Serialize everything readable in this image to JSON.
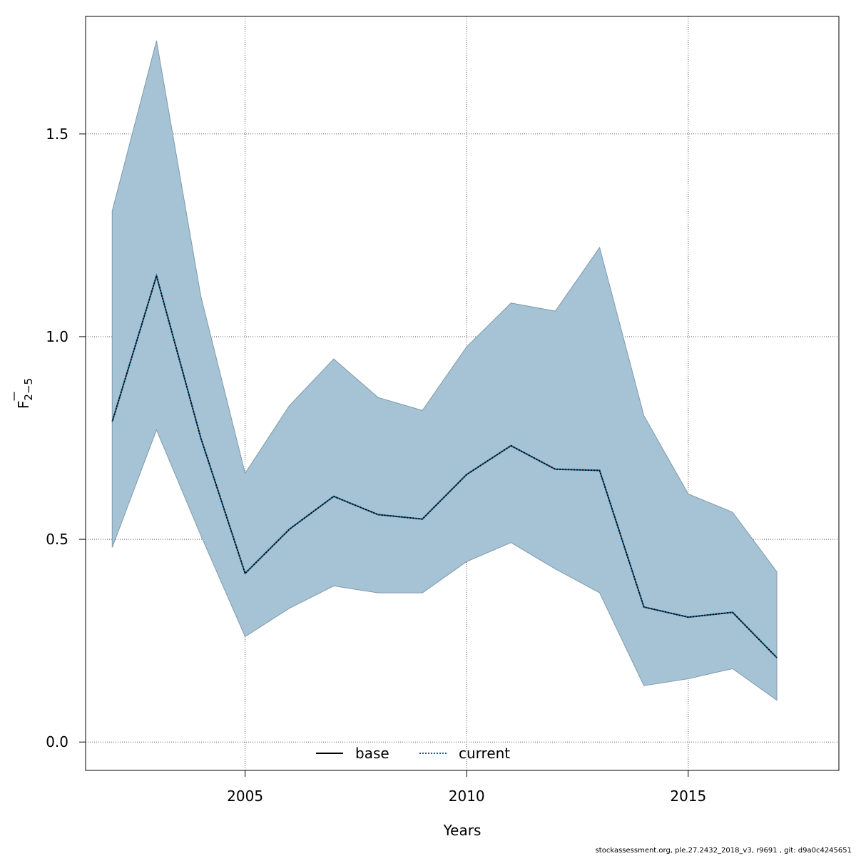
{
  "chart_data": {
    "type": "line",
    "xlabel": "Years",
    "ylabel": "F",
    "ylabel_subscript": "2−5",
    "xlim": [
      2001.4,
      2018.4
    ],
    "ylim": [
      -0.07,
      1.79
    ],
    "x_ticks": [
      2005,
      2010,
      2015
    ],
    "y_ticks": [
      0.0,
      0.5,
      1.0,
      1.5
    ],
    "y_tick_labels": [
      "0.0",
      "0.5",
      "1.0",
      "1.5"
    ],
    "grid": true,
    "legend_position": "bottom-center",
    "x": [
      2002,
      2003,
      2004,
      2005,
      2006,
      2007,
      2008,
      2009,
      2010,
      2011,
      2012,
      2013,
      2014,
      2015,
      2016,
      2017
    ],
    "band": {
      "color": "#a5c3d5",
      "lower": [
        0.48,
        0.77,
        0.51,
        0.26,
        0.33,
        0.385,
        0.368,
        0.368,
        0.445,
        0.492,
        0.427,
        0.368,
        0.139,
        0.156,
        0.181,
        0.103
      ],
      "upper": [
        1.31,
        1.73,
        1.1,
        0.663,
        0.83,
        0.945,
        0.85,
        0.818,
        0.975,
        1.083,
        1.063,
        1.22,
        0.805,
        0.612,
        0.567,
        0.42
      ]
    },
    "series": [
      {
        "name": "base",
        "style": "solid",
        "color": "#000000",
        "values": [
          0.79,
          1.15,
          0.75,
          0.416,
          0.525,
          0.606,
          0.561,
          0.55,
          0.66,
          0.731,
          0.673,
          0.67,
          0.333,
          0.308,
          0.32,
          0.208
        ]
      },
      {
        "name": "current",
        "style": "dotted",
        "color": "#0b5f91",
        "values": [
          0.79,
          1.15,
          0.75,
          0.416,
          0.525,
          0.606,
          0.561,
          0.55,
          0.66,
          0.731,
          0.673,
          0.67,
          0.333,
          0.308,
          0.32,
          0.208
        ]
      }
    ]
  },
  "footer": "stockassessment.org, ple.27.2432_2018_v3, r9691 , git: d9a0c4245651"
}
